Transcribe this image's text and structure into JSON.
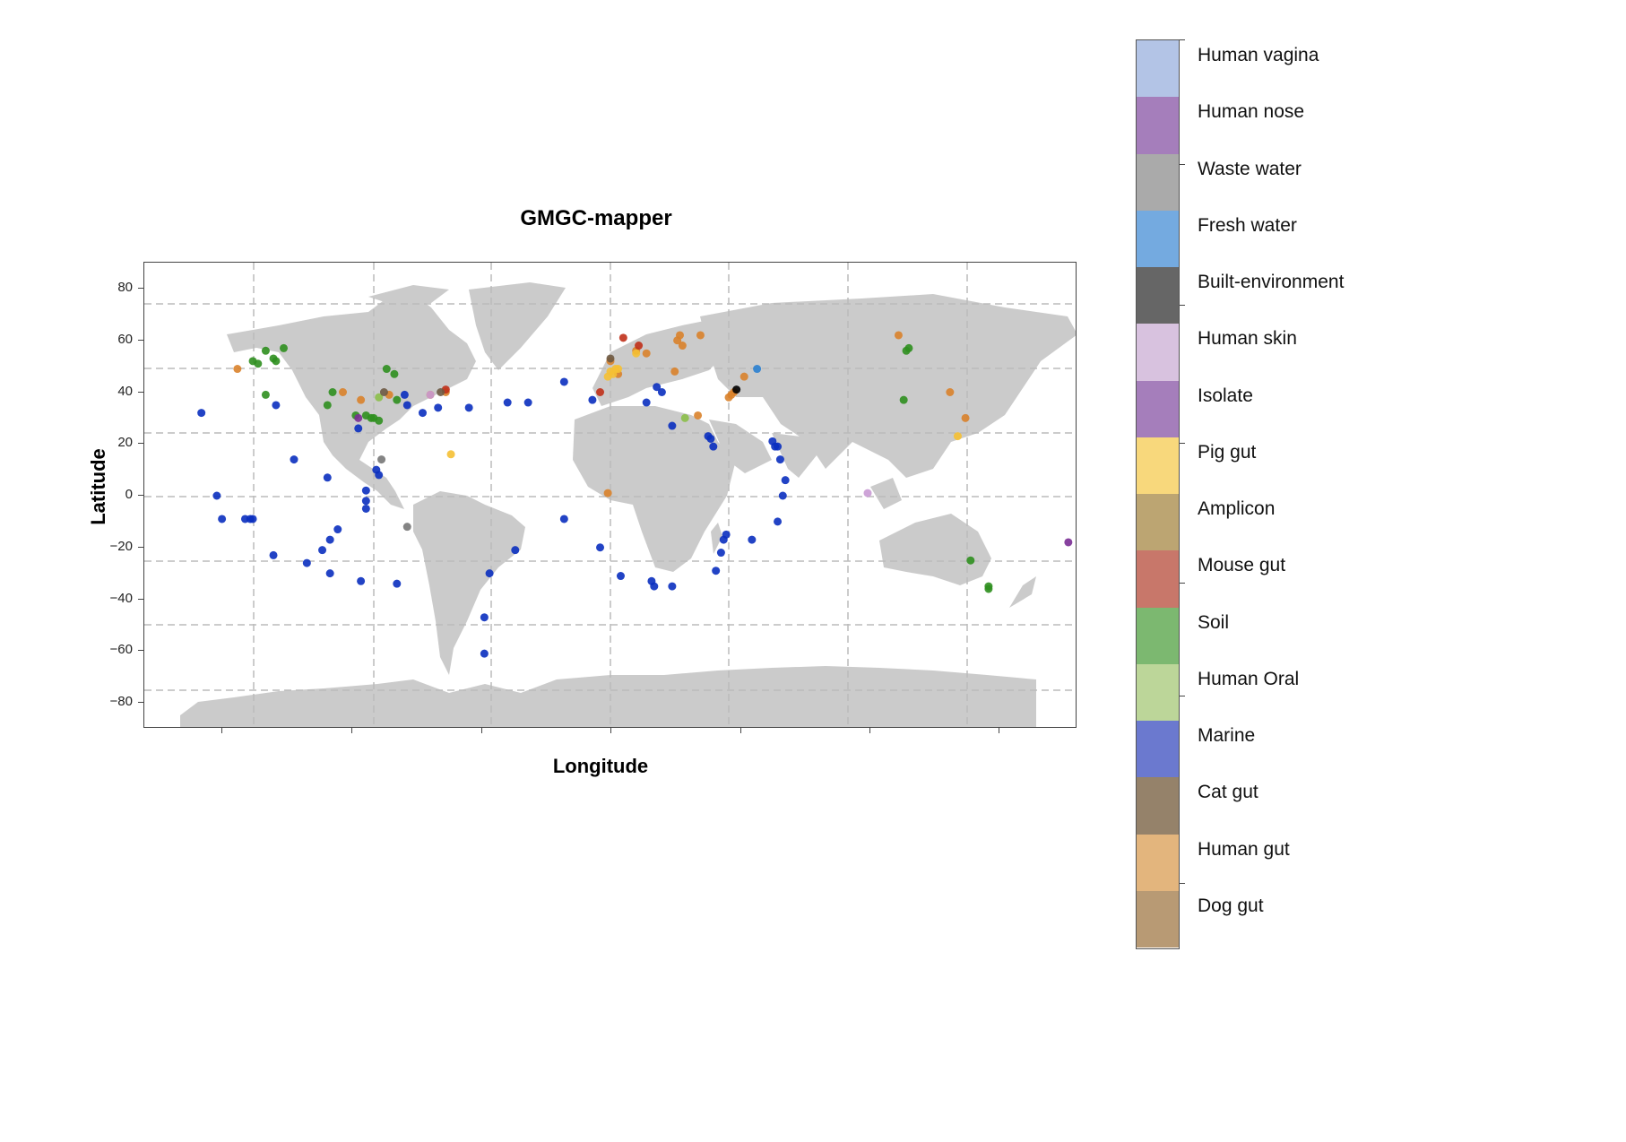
{
  "chart_data": {
    "type": "scatter",
    "title": "GMGC-mapper",
    "xlabel": "Longitude",
    "ylabel": "Latitude",
    "ylim": [
      -90,
      90
    ],
    "xlim": [
      -180,
      180
    ],
    "yticks": [
      80,
      60,
      40,
      20,
      0,
      -20,
      -40,
      -60,
      -80
    ],
    "ytick_labels": [
      "80",
      "60",
      "40",
      "20",
      "0",
      "−20",
      "−40",
      "−60",
      "−80"
    ],
    "xtick_labels": [],
    "grid": "dashed",
    "background": "world map (land in light gray)",
    "legend": {
      "type": "colorbar",
      "position": "right",
      "categories": [
        {
          "label": "Human vagina",
          "color": "#b3c4e6"
        },
        {
          "label": "Human nose",
          "color": "#a57ebb"
        },
        {
          "label": "Waste water",
          "color": "#aaaaaa"
        },
        {
          "label": "Fresh water",
          "color": "#74aae0"
        },
        {
          "label": "Built-environment",
          "color": "#666666"
        },
        {
          "label": "Human skin",
          "color": "#d8c2df"
        },
        {
          "label": "Isolate",
          "color": "#a57ebb"
        },
        {
          "label": "Pig gut",
          "color": "#f8d87c"
        },
        {
          "label": "Amplicon",
          "color": "#bca572"
        },
        {
          "label": "Mouse gut",
          "color": "#c8776a"
        },
        {
          "label": "Soil",
          "color": "#7cb870"
        },
        {
          "label": "Human Oral",
          "color": "#bcd699"
        },
        {
          "label": "Marine",
          "color": "#6b79cf"
        },
        {
          "label": "Cat gut",
          "color": "#95826a"
        },
        {
          "label": "Human gut",
          "color": "#e3b57d"
        },
        {
          "label": "Dog gut",
          "color": "#b89a74"
        }
      ]
    },
    "series": [
      {
        "name": "Marine",
        "color": "#0a2fbf",
        "points": [
          [
            -159,
            32
          ],
          [
            -153,
            0
          ],
          [
            -142,
            -9
          ],
          [
            -140,
            -9
          ],
          [
            -139,
            -9
          ],
          [
            -131,
            -23
          ],
          [
            -130,
            35
          ],
          [
            -123,
            14
          ],
          [
            -118,
            -26
          ],
          [
            -112,
            -21
          ],
          [
            -110,
            7
          ],
          [
            -109,
            -17
          ],
          [
            -109,
            -30
          ],
          [
            -106,
            -13
          ],
          [
            -98,
            26
          ],
          [
            -97,
            -33
          ],
          [
            -95,
            2
          ],
          [
            -95,
            -2
          ],
          [
            -95,
            -5
          ],
          [
            -91,
            10
          ],
          [
            -90,
            8
          ],
          [
            -83,
            -34
          ],
          [
            -80,
            39
          ],
          [
            -79,
            35
          ],
          [
            -73,
            32
          ],
          [
            -67,
            34
          ],
          [
            -55,
            34
          ],
          [
            -49,
            -47
          ],
          [
            -49,
            -61
          ],
          [
            -47,
            -30
          ],
          [
            -40,
            36
          ],
          [
            -37,
            -21
          ],
          [
            -32,
            36
          ],
          [
            -18,
            -9
          ],
          [
            -18,
            44
          ],
          [
            -7,
            37
          ],
          [
            -4,
            -20
          ],
          [
            4,
            -31
          ],
          [
            14,
            36
          ],
          [
            18,
            42
          ],
          [
            20,
            40
          ],
          [
            16,
            -33
          ],
          [
            17,
            -35
          ],
          [
            24,
            -35
          ],
          [
            24,
            27
          ],
          [
            38,
            23
          ],
          [
            39,
            22
          ],
          [
            40,
            19
          ],
          [
            41,
            -29
          ],
          [
            43,
            -22
          ],
          [
            44,
            -17
          ],
          [
            45,
            -15
          ],
          [
            55,
            -17
          ],
          [
            63,
            21
          ],
          [
            64,
            19
          ],
          [
            65,
            19
          ],
          [
            66,
            14
          ],
          [
            68,
            6
          ],
          [
            67,
            0
          ],
          [
            65,
            -10
          ],
          [
            -151,
            -9
          ]
        ]
      },
      {
        "name": "Soil",
        "color": "#2f8f1f",
        "points": [
          [
            -139,
            52
          ],
          [
            -137,
            51
          ],
          [
            -134,
            56
          ],
          [
            -131,
            53
          ],
          [
            -130,
            52
          ],
          [
            -127,
            57
          ],
          [
            -134,
            39
          ],
          [
            -110,
            35
          ],
          [
            -108,
            40
          ],
          [
            -95,
            31
          ],
          [
            -93,
            30
          ],
          [
            -92,
            30
          ],
          [
            -90,
            29
          ],
          [
            -87,
            49
          ],
          [
            -84,
            47
          ],
          [
            -83,
            37
          ],
          [
            115,
            56
          ],
          [
            116,
            57
          ],
          [
            114,
            37
          ],
          [
            -99,
            31
          ],
          [
            140,
            -25
          ],
          [
            147,
            -35
          ],
          [
            147,
            -36
          ]
        ]
      },
      {
        "name": "Human gut",
        "color": "#d9822b",
        "points": [
          [
            -97,
            37
          ],
          [
            -70,
            39
          ],
          [
            -64,
            40
          ],
          [
            0,
            52
          ],
          [
            3,
            47
          ],
          [
            10,
            56
          ],
          [
            14,
            55
          ],
          [
            26,
            60
          ],
          [
            27,
            62
          ],
          [
            28,
            58
          ],
          [
            35,
            62
          ],
          [
            52,
            46
          ],
          [
            47,
            39
          ],
          [
            48,
            40
          ],
          [
            46,
            38
          ],
          [
            34,
            31
          ],
          [
            25,
            48
          ],
          [
            -1,
            1
          ],
          [
            112,
            62
          ],
          [
            138,
            30
          ],
          [
            132,
            40
          ],
          [
            -145,
            49
          ],
          [
            -104,
            40
          ],
          [
            -86,
            39
          ]
        ]
      },
      {
        "name": "Pig gut",
        "color": "#f5c034",
        "points": [
          [
            0,
            48
          ],
          [
            1,
            47
          ],
          [
            2,
            49
          ],
          [
            3,
            49
          ],
          [
            -1,
            46
          ],
          [
            10,
            55
          ],
          [
            135,
            23
          ],
          [
            -62,
            16
          ]
        ]
      },
      {
        "name": "Mouse gut",
        "color": "#c0301a",
        "points": [
          [
            5,
            61
          ],
          [
            11,
            58
          ],
          [
            -4,
            40
          ],
          [
            -64,
            41
          ]
        ]
      },
      {
        "name": "Built-environment",
        "color": "#000000",
        "points": [
          [
            49,
            41
          ]
        ]
      },
      {
        "name": "Fresh water",
        "color": "#2a7fd0",
        "points": [
          [
            57,
            49
          ]
        ]
      },
      {
        "name": "Human Oral",
        "color": "#8cbf4a",
        "points": [
          [
            29,
            30
          ],
          [
            -90,
            38
          ]
        ]
      },
      {
        "name": "Cat gut",
        "color": "#6e5a44",
        "points": [
          [
            -88,
            40
          ],
          [
            -66,
            40
          ],
          [
            0,
            53
          ]
        ]
      },
      {
        "name": "Built-environment (gray)",
        "color": "#777777",
        "points": [
          [
            -89,
            14
          ],
          [
            -79,
            -12
          ]
        ]
      },
      {
        "name": "Human skin",
        "color": "#c99ad4",
        "points": [
          [
            100,
            1
          ],
          [
            -70,
            39
          ]
        ]
      },
      {
        "name": "Isolate",
        "color": "#7a2d95",
        "points": [
          [
            -98,
            30
          ],
          [
            178,
            -18
          ]
        ]
      }
    ]
  },
  "ui": {
    "title": "GMGC-mapper",
    "xlabel": "Longitude",
    "ylabel": "Latitude"
  }
}
